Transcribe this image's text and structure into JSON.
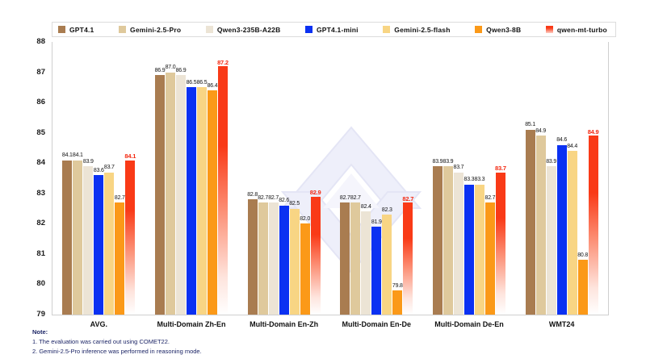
{
  "chart_data": {
    "type": "bar",
    "title": "",
    "xlabel": "",
    "ylabel": "",
    "ylim": [
      79,
      88
    ],
    "yticks": [
      79,
      80,
      81,
      82,
      83,
      84,
      85,
      86,
      87,
      88
    ],
    "grid": false,
    "legend_position": "top",
    "categories": [
      "AVG.",
      "Multi-Domain Zh-En",
      "Multi-Domain En-Zh",
      "Multi-Domain En-De",
      "Multi-Domain De-En",
      "WMT24"
    ],
    "series": [
      {
        "name": "GPT4.1",
        "color": "#A97C50",
        "gradient": false,
        "values": [
          84.1,
          86.9,
          82.8,
          82.7,
          83.9,
          85.1
        ]
      },
      {
        "name": "Gemini-2.5-Pro",
        "color": "#DFC99C",
        "gradient": false,
        "values": [
          84.1,
          87.0,
          82.7,
          82.7,
          83.9,
          84.9
        ]
      },
      {
        "name": "Qwen3-235B-A22B",
        "color": "#ECE4D5",
        "gradient": false,
        "values": [
          83.9,
          86.9,
          82.7,
          82.4,
          83.7,
          83.9
        ]
      },
      {
        "name": "GPT4.1-mini",
        "color": "#0B31F2",
        "gradient": false,
        "values": [
          83.6,
          86.5,
          82.6,
          81.9,
          83.3,
          84.6
        ]
      },
      {
        "name": "Gemini-2.5-flash",
        "color": "#F8D584",
        "gradient": false,
        "values": [
          83.7,
          86.5,
          82.5,
          82.3,
          83.3,
          84.4
        ]
      },
      {
        "name": "Qwen3-8B",
        "color": "#FB9918",
        "gradient": false,
        "values": [
          82.7,
          86.4,
          82.0,
          79.8,
          82.7,
          80.8
        ]
      },
      {
        "name": "qwen-mt-turbo",
        "color": "#F93A17",
        "gradient": true,
        "values": [
          84.1,
          87.2,
          82.9,
          82.7,
          83.7,
          84.9
        ]
      }
    ]
  },
  "colors": {
    "highlight_label": "#f4270f",
    "axis_line": "#cfcfcf",
    "note_text": "#1c2566",
    "watermark": "#ECEDF9"
  },
  "notes": {
    "heading": "Note:",
    "items": [
      "1. The evaluation was carried out using COMET22.",
      "2. Gemini-2.5-Pro inference was performed in reasoning mode."
    ]
  }
}
